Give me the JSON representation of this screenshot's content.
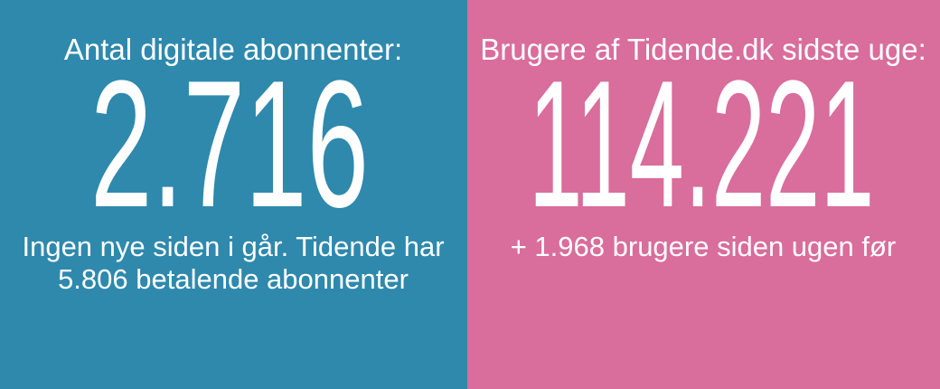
{
  "panels": [
    {
      "label": "Antal digitale abonnenter:",
      "value": "2.716",
      "note": [
        "Ingen nye siden i går. Tidende har",
        "5.806 betalende abonnenter"
      ]
    },
    {
      "label": "Brugere af Tidende.dk sidste uge:",
      "value": "114.221",
      "note": [
        "+ 1.968 brugere siden ugen før"
      ]
    }
  ]
}
